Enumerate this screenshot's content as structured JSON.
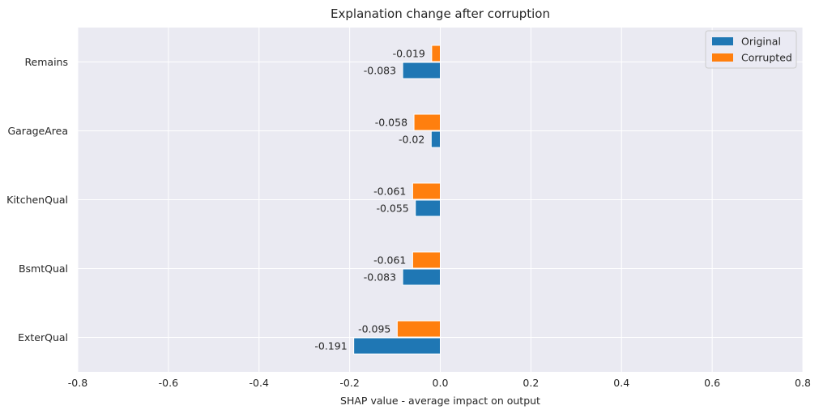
{
  "chart_data": {
    "type": "bar",
    "orientation": "horizontal",
    "title": "Explanation change after corruption",
    "xlabel": "SHAP value - average impact on output",
    "ylabel": "",
    "xlim": [
      -0.8,
      0.8
    ],
    "xticks": [
      -0.8,
      -0.6,
      -0.4,
      -0.2,
      0.0,
      0.2,
      0.4,
      0.6,
      0.8
    ],
    "xtick_labels": [
      "-0.8",
      "-0.6",
      "-0.4",
      "-0.2",
      "0.0",
      "0.2",
      "0.4",
      "0.6",
      "0.8"
    ],
    "categories": [
      "Remains",
      "GarageArea",
      "KitchenQual",
      "BsmtQual",
      "ExterQual"
    ],
    "series": [
      {
        "name": "Original",
        "color": "#1f77b4",
        "values": [
          -0.083,
          -0.02,
          -0.055,
          -0.083,
          -0.191
        ],
        "labels": [
          "-0.083",
          "-0.02",
          "-0.055",
          "-0.083",
          "-0.191"
        ]
      },
      {
        "name": "Corrupted",
        "color": "#ff7f0e",
        "values": [
          -0.019,
          -0.058,
          -0.061,
          -0.061,
          -0.095
        ],
        "labels": [
          "-0.019",
          "-0.058",
          "-0.061",
          "-0.061",
          "-0.095"
        ]
      }
    ],
    "grid": true,
    "legend_position": "top-right",
    "background": "#eaeaf2"
  }
}
